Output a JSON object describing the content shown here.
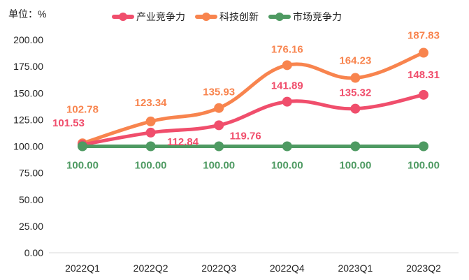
{
  "unit_label": "单位：%",
  "legend": [
    {
      "name": "产业竞争力",
      "color": "#f04e6c"
    },
    {
      "name": "科技创新",
      "color": "#f8844e"
    },
    {
      "name": "市场竞争力",
      "color": "#4e9a62"
    }
  ],
  "chart_data": {
    "type": "line",
    "title": "",
    "xlabel": "",
    "ylabel": "单位：%",
    "categories": [
      "2022Q1",
      "2022Q2",
      "2022Q3",
      "2022Q4",
      "2023Q1",
      "2023Q2"
    ],
    "series": [
      {
        "name": "产业竞争力",
        "color": "#f04e6c",
        "values": [
          101.53,
          112.84,
          119.76,
          141.89,
          135.32,
          148.31
        ]
      },
      {
        "name": "科技创新",
        "color": "#f8844e",
        "values": [
          102.78,
          123.34,
          135.93,
          176.16,
          164.23,
          187.83
        ]
      },
      {
        "name": "市场竞争力",
        "color": "#4e9a62",
        "values": [
          100.0,
          100.0,
          100.0,
          100.0,
          100.0,
          100.0
        ]
      }
    ],
    "yticks": [
      "0.00",
      "25.00",
      "50.00",
      "75.00",
      "100.00",
      "125.00",
      "150.00",
      "175.00",
      "200.00"
    ],
    "ylim": [
      0,
      200
    ],
    "grid": false,
    "legend_position": "top",
    "smooth": true,
    "data_labels": true
  }
}
